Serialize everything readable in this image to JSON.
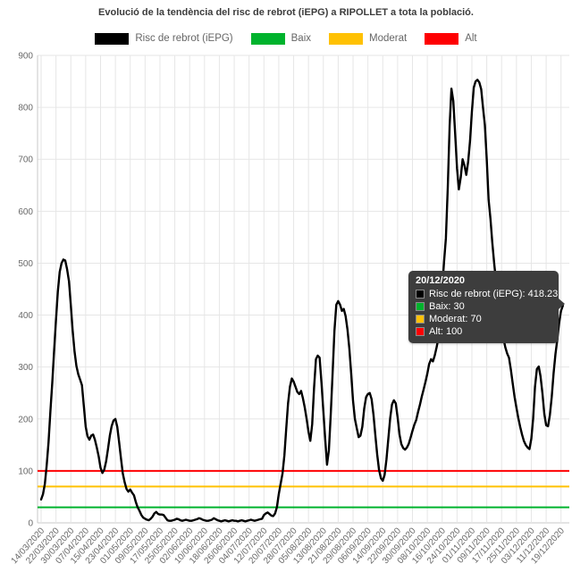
{
  "title": "Evolució de la tendència del risc de rebrot (iEPG) a RIPOLLET a tota la població.",
  "colors": {
    "series_main": "#000000",
    "baix_green": "#00b32d",
    "moderat_yellow": "#ffc103",
    "alt_red": "#fe0002",
    "grid": "#e6e6e6",
    "axis": "#c9c9c9",
    "tick_text": "#696969",
    "legend_text": "#666666",
    "title_text": "#3c3c3c",
    "tooltip_bg": "#3d3d3d",
    "tooltip_text": "#ffffff"
  },
  "legend": {
    "items": [
      {
        "label": "Risc de rebrot (iEPG)",
        "color": "#000000"
      },
      {
        "label": "Baix",
        "color": "#00b32d"
      },
      {
        "label": "Moderat",
        "color": "#ffc103"
      },
      {
        "label": "Alt",
        "color": "#fe0002"
      }
    ]
  },
  "tooltip": {
    "date": "20/12/2020",
    "rows": [
      {
        "label": "Risc de rebrot (iEPG): 418.23",
        "color": "#000000"
      },
      {
        "label": "Baix: 30",
        "color": "#00b32d"
      },
      {
        "label": "Moderat: 70",
        "color": "#ffc103"
      },
      {
        "label": "Alt: 100",
        "color": "#fe0002"
      }
    ]
  },
  "chart_data": {
    "type": "line",
    "title": "Evolució de la tendència del risc de rebrot (iEPG) a RIPOLLET a tota la població.",
    "xlabel": "",
    "ylabel": "",
    "ylim": [
      0,
      900
    ],
    "y_ticks": [
      0,
      100,
      200,
      300,
      400,
      500,
      600,
      700,
      800,
      900
    ],
    "grid": true,
    "legend_position": "top",
    "x_tick_labels": [
      "14/03/2020",
      "22/03/2020",
      "30/03/2020",
      "07/04/2020",
      "15/04/2020",
      "23/04/2020",
      "01/05/2020",
      "09/05/2020",
      "17/05/2020",
      "25/05/2020",
      "02/06/2020",
      "10/06/2020",
      "18/06/2020",
      "26/06/2020",
      "04/07/2020",
      "12/07/2020",
      "20/07/2020",
      "28/07/2020",
      "05/08/2020",
      "13/08/2020",
      "21/08/2020",
      "29/08/2020",
      "06/09/2020",
      "14/09/2020",
      "22/09/2020",
      "30/09/2020",
      "08/10/2020",
      "16/10/2020",
      "24/10/2020",
      "01/11/2020",
      "09/11/2020",
      "17/11/2020",
      "25/11/2020",
      "03/12/2020",
      "11/12/2020",
      "19/12/2020"
    ],
    "days_per_tick": 8,
    "series": [
      {
        "name": "Risc de rebrot (iEPG)",
        "color": "#000000",
        "start_date": "14/03/2020",
        "end_date": "20/12/2020",
        "interval_days": 1,
        "values": [
          45,
          55,
          75,
          110,
          155,
          215,
          270,
          330,
          390,
          445,
          483,
          500,
          507,
          505,
          488,
          465,
          420,
          370,
          330,
          302,
          286,
          276,
          265,
          225,
          185,
          167,
          160,
          168,
          170,
          160,
          145,
          128,
          106,
          96,
          102,
          118,
          142,
          168,
          186,
          197,
          200,
          185,
          155,
          125,
          95,
          78,
          65,
          60,
          64,
          58,
          53,
          40,
          30,
          23,
          15,
          10,
          8,
          6,
          5,
          8,
          12,
          18,
          21,
          17,
          16,
          16,
          15,
          10,
          5,
          4,
          4,
          5,
          6,
          8,
          7,
          5,
          4,
          5,
          6,
          5,
          4,
          4,
          5,
          6,
          7,
          9,
          8,
          6,
          5,
          4,
          4,
          5,
          6,
          9,
          7,
          5,
          4,
          3,
          4,
          5,
          4,
          3,
          4,
          5,
          4,
          4,
          3,
          4,
          5,
          4,
          3,
          4,
          5,
          6,
          5,
          4,
          5,
          6,
          7,
          8,
          15,
          18,
          20,
          17,
          14,
          13,
          18,
          30,
          55,
          75,
          95,
          130,
          180,
          230,
          262,
          278,
          272,
          262,
          252,
          248,
          254,
          240,
          222,
          200,
          175,
          158,
          190,
          260,
          315,
          322,
          318,
          270,
          215,
          160,
          112,
          140,
          210,
          290,
          370,
          420,
          427,
          420,
          408,
          412,
          398,
          372,
          335,
          288,
          235,
          200,
          182,
          165,
          168,
          185,
          220,
          242,
          248,
          250,
          238,
          208,
          168,
          132,
          102,
          86,
          81,
          92,
          122,
          162,
          202,
          228,
          236,
          230,
          203,
          170,
          152,
          144,
          141,
          145,
          152,
          164,
          177,
          189,
          198,
          213,
          227,
          243,
          257,
          271,
          287,
          306,
          315,
          311,
          322,
          338,
          356,
          395,
          450,
          502,
          548,
          645,
          765,
          836,
          812,
          748,
          682,
          642,
          665,
          700,
          688,
          670,
          695,
          735,
          792,
          838,
          850,
          853,
          848,
          835,
          800,
          766,
          700,
          622,
          585,
          540,
          500,
          465,
          440,
          415,
          385,
          355,
          338,
          326,
          318,
          295,
          268,
          242,
          222,
          202,
          185,
          170,
          158,
          150,
          145,
          142,
          162,
          200,
          262,
          296,
          301,
          282,
          250,
          210,
          188,
          186,
          207,
          242,
          288,
          325,
          352,
          385,
          408,
          418.23
        ]
      },
      {
        "name": "Baix",
        "type": "constant",
        "value": 30,
        "color": "#00b32d"
      },
      {
        "name": "Moderat",
        "type": "constant",
        "value": 70,
        "color": "#ffc103"
      },
      {
        "name": "Alt",
        "type": "constant",
        "value": 100,
        "color": "#fe0002"
      }
    ],
    "highlight_point": {
      "date": "20/12/2020",
      "value": 418.23
    }
  }
}
